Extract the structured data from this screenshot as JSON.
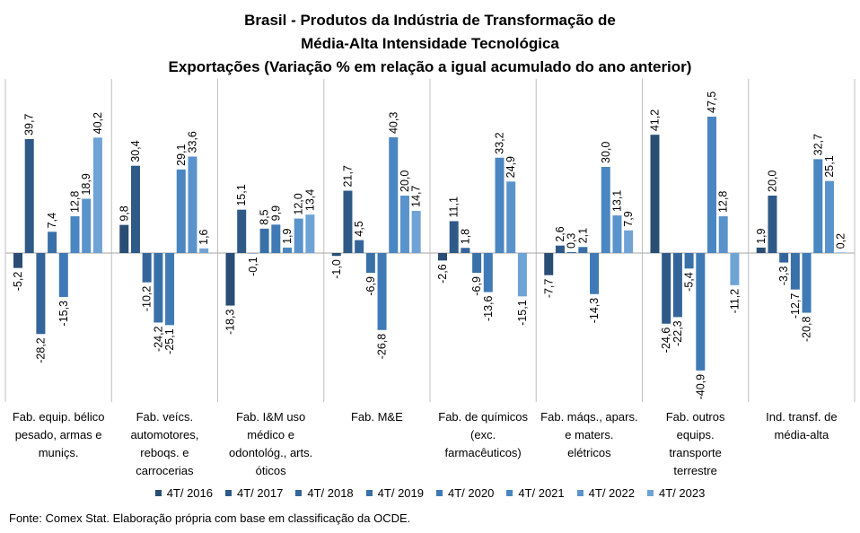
{
  "title_lines": [
    "Brasil - Produtos da Indústria de Transformação  de",
    "Média-Alta  Intensidade Tecnológica",
    "Exportações (Variação % em relação a igual acumulado do ano anterior)"
  ],
  "source": "Fonte: Comex Stat. Elaboração própria com base em classificação da OCDE.",
  "chart_data": {
    "type": "bar",
    "categories": [
      [
        "Fab. equip. bélico",
        "pesado, armas e",
        "muniçs."
      ],
      [
        "Fab. veícs.",
        "automotores,",
        "reboqs. e",
        "carrocerias"
      ],
      [
        "Fab. I&M uso",
        "médico e",
        "odontológ., arts.",
        "óticos"
      ],
      [
        "Fab. M&E"
      ],
      [
        "Fab. de químicos",
        "(exc.",
        "farmacêuticos)"
      ],
      [
        "Fab. máqs., apars.",
        "e maters.",
        "elétricos"
      ],
      [
        "Fab. outros",
        "equips.",
        "transporte",
        "terrestre"
      ],
      [
        "Ind. transf. de",
        "média-alta"
      ]
    ],
    "series": [
      {
        "name": "4T/ 2016",
        "color": "#2a4d74",
        "values": [
          -5.2,
          9.8,
          -18.3,
          -1.0,
          -2.6,
          -7.7,
          41.2,
          1.9
        ]
      },
      {
        "name": "4T/ 2017",
        "color": "#2f5a88",
        "values": [
          39.7,
          30.4,
          15.1,
          21.7,
          11.1,
          2.6,
          -24.6,
          20.0
        ]
      },
      {
        "name": "4T/ 2018",
        "color": "#34659a",
        "values": [
          -28.2,
          -10.2,
          -0.1,
          4.5,
          1.8,
          0.3,
          -22.3,
          -3.3
        ]
      },
      {
        "name": "4T/ 2019",
        "color": "#3a70a8",
        "values": [
          7.4,
          -24.2,
          8.5,
          -6.9,
          -6.9,
          2.1,
          -5.4,
          -12.7
        ]
      },
      {
        "name": "4T/ 2020",
        "color": "#3f7ab6",
        "values": [
          -15.3,
          -25.1,
          9.9,
          -26.8,
          -13.6,
          -14.3,
          -40.9,
          -20.8
        ]
      },
      {
        "name": "4T/ 2021",
        "color": "#4a86c1",
        "values": [
          12.8,
          29.1,
          1.9,
          40.3,
          33.2,
          30.0,
          47.5,
          32.7
        ]
      },
      {
        "name": "4T/ 2022",
        "color": "#5a93cb",
        "values": [
          18.9,
          33.6,
          12.0,
          20.0,
          24.9,
          13.1,
          12.8,
          25.1
        ]
      },
      {
        "name": "4T/ 2023",
        "color": "#6fa3d6",
        "values": [
          40.2,
          1.6,
          13.4,
          14.7,
          -15.1,
          7.9,
          -11.2,
          0.2
        ]
      }
    ],
    "value_labels": [
      [
        "-5,2",
        "39,7",
        "-28,2",
        "7,4",
        "-15,3",
        "12,8",
        "18,9",
        "40,2"
      ],
      [
        "9,8",
        "30,4",
        "-10,2",
        "-24,2",
        "-25,1",
        "29,1",
        "33,6",
        "1,6"
      ],
      [
        "-18,3",
        "15,1",
        "-0,1",
        "8,5",
        "9,9",
        "1,9",
        "12,0",
        "13,4"
      ],
      [
        "-1,0",
        "21,7",
        "4,5",
        "-6,9",
        "-26,8",
        "40,3",
        "20,0",
        "14,7"
      ],
      [
        "-2,6",
        "11,1",
        "1,8",
        "-6,9",
        "-13,6",
        "33,2",
        "24,9",
        "-15,1"
      ],
      [
        "-7,7",
        "2,6",
        "0,3",
        "2,1",
        "-14,3",
        "30,0",
        "13,1",
        "7,9"
      ],
      [
        "41,2",
        "-24,6",
        "-22,3",
        "-5,4",
        "-40,9",
        "47,5",
        "12,8",
        "-11,2"
      ],
      [
        "1,9",
        "20,0",
        "-3,3",
        "-12,7",
        "-20,8",
        "32,7",
        "25,1",
        "0,2"
      ]
    ],
    "ylim": [
      -47,
      60
    ],
    "legend_position": "bottom",
    "grid": false
  }
}
